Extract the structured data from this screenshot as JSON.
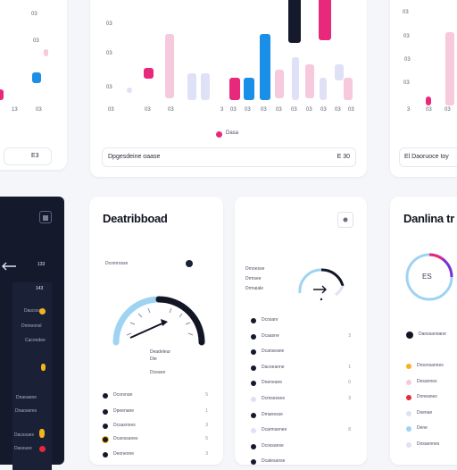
{
  "colors": {
    "pink": "#e8287a",
    "pink_light": "#f6c9dd",
    "blue": "#1a8fe8",
    "blue_light": "#9fd3f2",
    "navy": "#141a2c",
    "lavender": "#dfe1f6",
    "amber": "#f4b41b",
    "purple": "#7b2fd8",
    "red": "#e8283a",
    "gauge_dark": "#121624"
  },
  "top_left_card": {
    "ticks_y": [
      "03",
      "03"
    ],
    "ticks_x": [
      "13",
      "03"
    ],
    "footer": "E3"
  },
  "top_mid_card": {
    "ticks_y": [
      "03",
      "03",
      "03"
    ],
    "ticks_x": [
      "03",
      "03",
      "03",
      "3",
      "03",
      "03",
      "03",
      "03",
      "03",
      "03",
      "03",
      "03",
      "03"
    ],
    "legend": "Dasa",
    "footer_left": "Dpgesdeine oaase",
    "footer_right": "E 30"
  },
  "top_right_card": {
    "ticks_y": [
      "03",
      "03",
      "03",
      "03"
    ],
    "ticks_x": [
      "3",
      "03",
      "03"
    ],
    "footer": "El Daoruoce toy"
  },
  "sidebar": {
    "menu_icon": "hamburger-menu-icon",
    "back_icon": "arrow-left-icon",
    "top_value": "133",
    "badge": "143",
    "rows": [
      {
        "label": "Dascosse"
      },
      {
        "label": "Dnmoonsl"
      },
      {
        "label": "Cacondee"
      },
      {
        "label": "Dnaoaene"
      },
      {
        "label": "Dnaoseres"
      },
      {
        "label": "Dacssues"
      },
      {
        "label": "Dassuee"
      }
    ]
  },
  "dashboard_card": {
    "title": "Deatribboad",
    "legend_label": "Dcomrosse",
    "gauge": {
      "value": 0.62,
      "label_1": "Deadeleur",
      "label_2": "Dte",
      "label_3": "Dceane"
    },
    "rows": [
      {
        "label": "Dcorsnan",
        "value": "5"
      },
      {
        "label": "Dpeenane",
        "value": "1"
      },
      {
        "label": "Dcsasnnes",
        "value": "3"
      },
      {
        "label": "Dcanssanes",
        "value": "5"
      },
      {
        "label": "Deoneone",
        "value": "3"
      }
    ]
  },
  "stats_card": {
    "icon": "settings-icon",
    "labels_left": [
      "Drnoesse",
      "Drmsee",
      "Drmaiale"
    ],
    "gauge_value": 0.72,
    "rows": [
      {
        "label": "Dcosanr"
      },
      {
        "label": "Dcaasne",
        "value": "3"
      },
      {
        "label": "Dcanseane"
      },
      {
        "label": "Dacoeanne",
        "value": "1"
      },
      {
        "label": "Dneneane",
        "value": "0"
      },
      {
        "label": "Dcmsessee",
        "value": "3"
      },
      {
        "label": "Dmanesse"
      },
      {
        "label": "Dcarmsenee",
        "value": "8"
      },
      {
        "label": "Dcossanse"
      },
      {
        "label": "Dcatesanse"
      }
    ]
  },
  "right_card": {
    "title": "Danlina tr",
    "donut_center": "ES",
    "donut_value": 0.35,
    "header_row": "Danssanoane",
    "rows": [
      {
        "label": "Droonsannes",
        "color": "#f4b41b"
      },
      {
        "label": "Desannes",
        "color": "#f6c9dd"
      },
      {
        "label": "Doneanes",
        "color": "#e8283a"
      },
      {
        "label": "Dsenae",
        "color": "#dfe1f6"
      },
      {
        "label": "Dene",
        "color": "#9fd3f2"
      },
      {
        "label": "Dosaennes",
        "color": "#dfe1f6"
      }
    ]
  }
}
